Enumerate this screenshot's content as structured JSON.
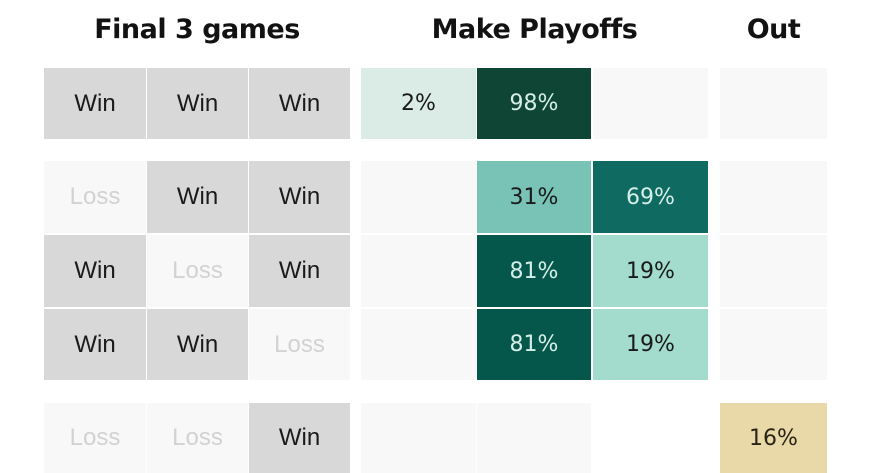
{
  "headers": {
    "games": "Final 3 games",
    "playoffs": "Make Playoffs",
    "out": "Out"
  },
  "colors": {
    "win_bg": "#d8d8d8",
    "loss_bg": "#f8f8f8",
    "empty_bg": "#f8f8f8",
    "out_bg": "#ead9a8"
  },
  "rows": [
    {
      "games": [
        "Win",
        "Win",
        "Win"
      ],
      "playoffs": [
        {
          "label": "2%",
          "bg": "#dbece7",
          "fg": "#1a1a1a"
        },
        {
          "label": "98%",
          "bg": "#0f4535",
          "fg": "#d5efe8"
        },
        {
          "label": "",
          "bg": "#f8f8f8",
          "fg": "#1a1a1a"
        }
      ],
      "out": {
        "label": "",
        "bg": "#f8f8f8",
        "fg": "#1a1a1a"
      }
    },
    {
      "games": [
        "Loss",
        "Win",
        "Win"
      ],
      "playoffs": [
        {
          "label": "",
          "bg": "#f8f8f8",
          "fg": "#1a1a1a"
        },
        {
          "label": "31%",
          "bg": "#78c2b6",
          "fg": "#1a1a1a"
        },
        {
          "label": "69%",
          "bg": "#0f6a62",
          "fg": "#d5efe8"
        }
      ],
      "out": {
        "label": "",
        "bg": "#f8f8f8",
        "fg": "#1a1a1a"
      }
    },
    {
      "games": [
        "Win",
        "Loss",
        "Win"
      ],
      "playoffs": [
        {
          "label": "",
          "bg": "#f8f8f8",
          "fg": "#1a1a1a"
        },
        {
          "label": "81%",
          "bg": "#06574b",
          "fg": "#d5efe8"
        },
        {
          "label": "19%",
          "bg": "#a3dccc",
          "fg": "#1a1a1a"
        }
      ],
      "out": {
        "label": "",
        "bg": "#f8f8f8",
        "fg": "#1a1a1a"
      }
    },
    {
      "games": [
        "Win",
        "Win",
        "Loss"
      ],
      "playoffs": [
        {
          "label": "",
          "bg": "#f8f8f8",
          "fg": "#1a1a1a"
        },
        {
          "label": "81%",
          "bg": "#06574b",
          "fg": "#d5efe8"
        },
        {
          "label": "19%",
          "bg": "#a3dccc",
          "fg": "#1a1a1a"
        }
      ],
      "out": {
        "label": "",
        "bg": "#f8f8f8",
        "fg": "#1a1a1a"
      }
    },
    {
      "games": [
        "Loss",
        "Loss",
        "Win"
      ],
      "playoffs": [
        {
          "label": "",
          "bg": "#f8f8f8",
          "fg": "#1a1a1a"
        },
        {
          "label": "",
          "bg": "#f8f8f8",
          "fg": "#1a1a1a"
        },
        {
          "label": "",
          "bg": "#ffffff",
          "fg": "#1a1a1a"
        }
      ],
      "out": {
        "label": "16%",
        "bg": "#ead9a8",
        "fg": "#2a2418"
      }
    }
  ],
  "chart_data": {
    "type": "table",
    "title": "",
    "columns": [
      "Final 3 games",
      "Make Playoffs",
      "Out"
    ],
    "scenarios": [
      {
        "games": [
          "Win",
          "Win",
          "Win"
        ],
        "make_playoffs": [
          "2%",
          "98%",
          ""
        ],
        "out": ""
      },
      {
        "games": [
          "Loss",
          "Win",
          "Win"
        ],
        "make_playoffs": [
          "",
          "31%",
          "69%"
        ],
        "out": ""
      },
      {
        "games": [
          "Win",
          "Loss",
          "Win"
        ],
        "make_playoffs": [
          "",
          "81%",
          "19%"
        ],
        "out": ""
      },
      {
        "games": [
          "Win",
          "Win",
          "Loss"
        ],
        "make_playoffs": [
          "",
          "81%",
          "19%"
        ],
        "out": ""
      },
      {
        "games": [
          "Loss",
          "Loss",
          "Win"
        ],
        "make_playoffs": [
          "",
          "",
          ""
        ],
        "out": "16%"
      }
    ]
  }
}
